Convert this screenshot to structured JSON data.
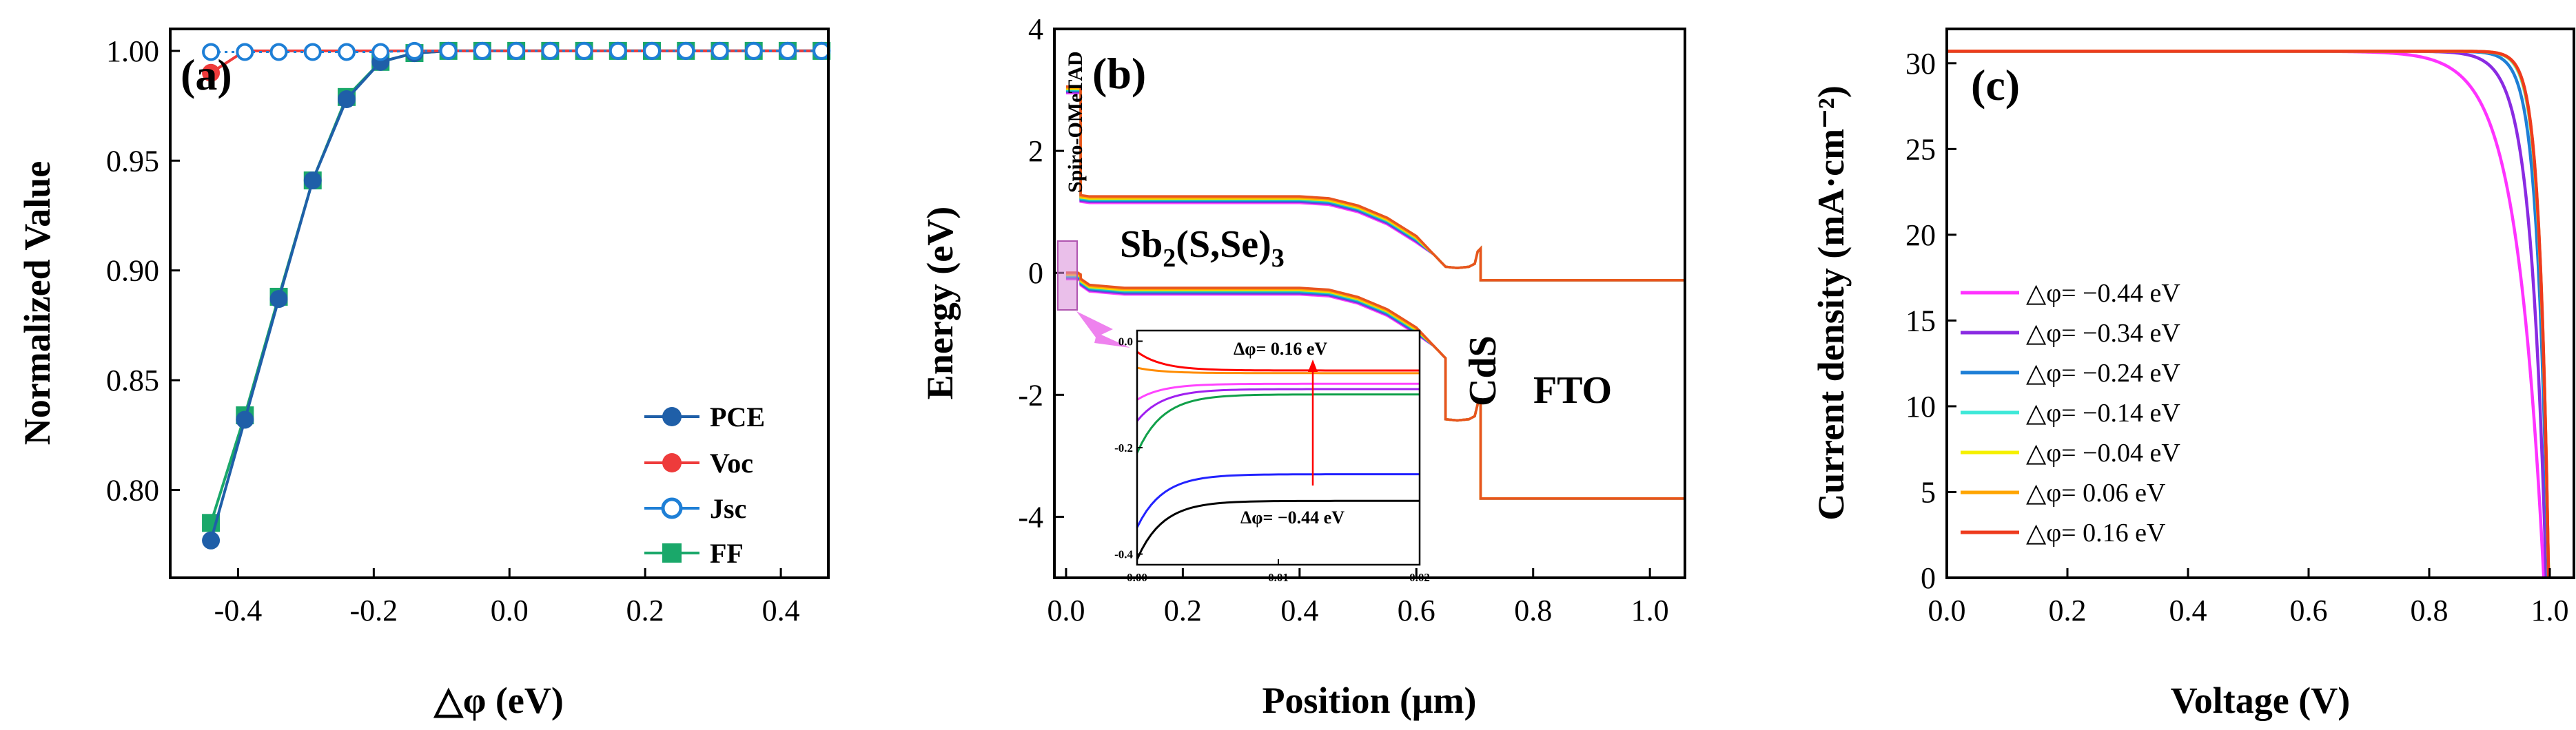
{
  "chart_data": [
    {
      "type": "line",
      "panel_label": "(a)",
      "xlabel": "△φ (eV)",
      "ylabel": "Normalized Value",
      "xlim": [
        -0.5,
        0.47
      ],
      "ylim": [
        0.76,
        1.01
      ],
      "xticks": [
        "-0.4",
        "-0.2",
        "0.0",
        "0.2",
        "0.4"
      ],
      "xtick_values": [
        -0.4,
        -0.2,
        0.0,
        0.2,
        0.4
      ],
      "yticks": [
        "0.80",
        "0.85",
        "0.90",
        "0.95",
        "1.00"
      ],
      "ytick_values": [
        0.8,
        0.85,
        0.9,
        0.95,
        1.0
      ],
      "x": [
        -0.44,
        -0.39,
        -0.34,
        -0.29,
        -0.24,
        -0.19,
        -0.14,
        -0.09,
        -0.04,
        0.01,
        0.06,
        0.11,
        0.16,
        0.21,
        0.26,
        0.31,
        0.36,
        0.41,
        0.46
      ],
      "legend": {
        "position": "bottom-right"
      },
      "series": [
        {
          "name": "PCE",
          "color": "#1f5fa8",
          "marker": "circle-half",
          "values": [
            0.777,
            0.832,
            0.887,
            0.941,
            0.978,
            0.995,
            0.999,
            1.0,
            1.0,
            1.0,
            1.0,
            1.0,
            1.0,
            1.0,
            1.0,
            1.0,
            1.0,
            1.0,
            1.0
          ]
        },
        {
          "name": "Voc",
          "color": "#ee3b3b",
          "marker": "circle-filled",
          "values": [
            0.99,
            1.0,
            1.0,
            1.0,
            1.0,
            1.0,
            1.0,
            1.0,
            1.0,
            1.0,
            1.0,
            1.0,
            1.0,
            1.0,
            1.0,
            1.0,
            1.0,
            1.0,
            1.0
          ]
        },
        {
          "name": "Jsc",
          "color": "#1e7fd6",
          "marker": "circle-open",
          "values": [
            0.9995,
            0.9995,
            0.9995,
            0.9995,
            0.9995,
            0.9995,
            1.0,
            1.0,
            1.0,
            1.0,
            1.0,
            1.0,
            1.0,
            1.0,
            1.0,
            1.0,
            1.0,
            1.0,
            1.0
          ]
        },
        {
          "name": "FF",
          "color": "#1aa86a",
          "marker": "square-filled",
          "values": [
            0.785,
            0.834,
            0.888,
            0.941,
            0.979,
            0.995,
            0.999,
            1.0,
            1.0,
            1.0,
            1.0,
            1.0,
            1.0,
            1.0,
            1.0,
            1.0,
            1.0,
            1.0,
            1.0
          ]
        }
      ]
    },
    {
      "type": "line",
      "panel_label": "(b)",
      "xlabel": "Position (μm)",
      "ylabel": "Energy (eV)",
      "xlim": [
        -0.02,
        1.06
      ],
      "ylim": [
        -5,
        4
      ],
      "xticks": [
        "0.0",
        "0.2",
        "0.4",
        "0.6",
        "0.8",
        "1.0"
      ],
      "xtick_values": [
        0.0,
        0.2,
        0.4,
        0.6,
        0.8,
        1.0
      ],
      "yticks": [
        "-4",
        "-2",
        "0",
        "2",
        "4"
      ],
      "ytick_values": [
        -4,
        -2,
        0,
        2,
        4
      ],
      "annotations": {
        "spiro": "Spiro-OMeTAD",
        "absorber_base": "Sb",
        "absorber_sub1": "2",
        "absorber_mid": "(S,Se)",
        "absorber_sub2": "3",
        "cds": "CdS",
        "fto": "FTO"
      },
      "band_colors": [
        "#ff44ff",
        "#8a2be2",
        "#1e7fd6",
        "#20d0c0",
        "#f0e000",
        "#ffa500",
        "#e8541e"
      ],
      "conduction_band": {
        "x": [
          0.0,
          0.02,
          0.025,
          0.025,
          0.04,
          0.1,
          0.15,
          0.2,
          0.3,
          0.4,
          0.45,
          0.5,
          0.55,
          0.6,
          0.63,
          0.65,
          0.67,
          0.69,
          0.7,
          0.705,
          0.71,
          0.71,
          1.06
        ],
        "y": [
          3.0,
          3.0,
          3.0,
          1.22,
          1.2,
          1.2,
          1.2,
          1.2,
          1.2,
          1.2,
          1.17,
          1.05,
          0.85,
          0.55,
          0.3,
          0.1,
          0.08,
          0.1,
          0.15,
          0.35,
          0.4,
          -0.12,
          -0.12
        ]
      },
      "valence_band": {
        "x": [
          0.0,
          0.02,
          0.025,
          0.025,
          0.04,
          0.1,
          0.15,
          0.2,
          0.3,
          0.4,
          0.45,
          0.5,
          0.55,
          0.6,
          0.63,
          0.65,
          0.65,
          0.67,
          0.69,
          0.7,
          0.705,
          0.71,
          0.71,
          1.06
        ],
        "y": [
          -0.05,
          -0.05,
          -0.08,
          -0.15,
          -0.25,
          -0.3,
          -0.3,
          -0.3,
          -0.3,
          -0.3,
          -0.33,
          -0.45,
          -0.65,
          -0.95,
          -1.2,
          -1.4,
          -2.4,
          -2.42,
          -2.4,
          -2.35,
          -2.15,
          -2.1,
          -3.7,
          -3.7
        ]
      },
      "inset": {
        "xlim": [
          0.0,
          0.02
        ],
        "ylim": [
          -0.42,
          0.02
        ],
        "xticks": [
          "0.00",
          "0.01",
          "0.02"
        ],
        "xtick_values": [
          0.0,
          0.01,
          0.02
        ],
        "yticks": [
          "0.0",
          "-0.2",
          "-0.4"
        ],
        "ytick_values": [
          0.0,
          -0.2,
          -0.4
        ],
        "label_top": "Δφ= 0.16 eV",
        "label_bottom": "Δφ= −0.44 eV",
        "series": [
          {
            "color": "#000000",
            "plateau": -0.3,
            "start": -0.41
          },
          {
            "color": "#2222ff",
            "plateau": -0.25,
            "start": -0.35
          },
          {
            "color": "#11a04a",
            "plateau": -0.1,
            "start": -0.21
          },
          {
            "color": "#a020f0",
            "plateau": -0.09,
            "start": -0.15
          },
          {
            "color": "#ff44ff",
            "plateau": -0.08,
            "start": -0.11
          },
          {
            "color": "#ff8c00",
            "plateau": -0.06,
            "start": -0.05
          },
          {
            "color": "#ff0000",
            "plateau": -0.055,
            "start": -0.02
          }
        ]
      }
    },
    {
      "type": "line",
      "panel_label": "(c)",
      "xlabel": "Voltage (V)",
      "ylabel": "Current density (mA·cm⁻²)",
      "xlim": [
        0.0,
        1.04
      ],
      "ylim": [
        0,
        32
      ],
      "xticks": [
        "0.0",
        "0.2",
        "0.4",
        "0.6",
        "0.8",
        "1.0"
      ],
      "xtick_values": [
        0.0,
        0.2,
        0.4,
        0.6,
        0.8,
        1.0
      ],
      "yticks": [
        "0",
        "5",
        "10",
        "15",
        "20",
        "25",
        "30"
      ],
      "ytick_values": [
        0,
        5,
        10,
        15,
        20,
        25,
        30
      ],
      "legend": {
        "position": "left-middle"
      },
      "jsc": 30.7,
      "series": [
        {
          "name": "△φ= −0.44 eV",
          "color": "#ff33ff",
          "voc": 0.99,
          "vt": 0.045
        },
        {
          "name": "△φ= −0.34 eV",
          "color": "#8a2be2",
          "voc": 0.994,
          "vt": 0.026
        },
        {
          "name": "△φ= −0.24 eV",
          "color": "#1e7fd6",
          "voc": 0.997,
          "vt": 0.018
        },
        {
          "name": "△φ= −0.14 eV",
          "color": "#3ee8d8",
          "voc": 0.998,
          "vt": 0.0155
        },
        {
          "name": "△φ= −0.04 eV",
          "color": "#f5f000",
          "voc": 0.998,
          "vt": 0.0152
        },
        {
          "name": "△φ= 0.06 eV",
          "color": "#ffa500",
          "voc": 0.998,
          "vt": 0.0151
        },
        {
          "name": "△φ= 0.16 eV",
          "color": "#ee3b1e",
          "voc": 0.998,
          "vt": 0.015
        }
      ]
    }
  ]
}
